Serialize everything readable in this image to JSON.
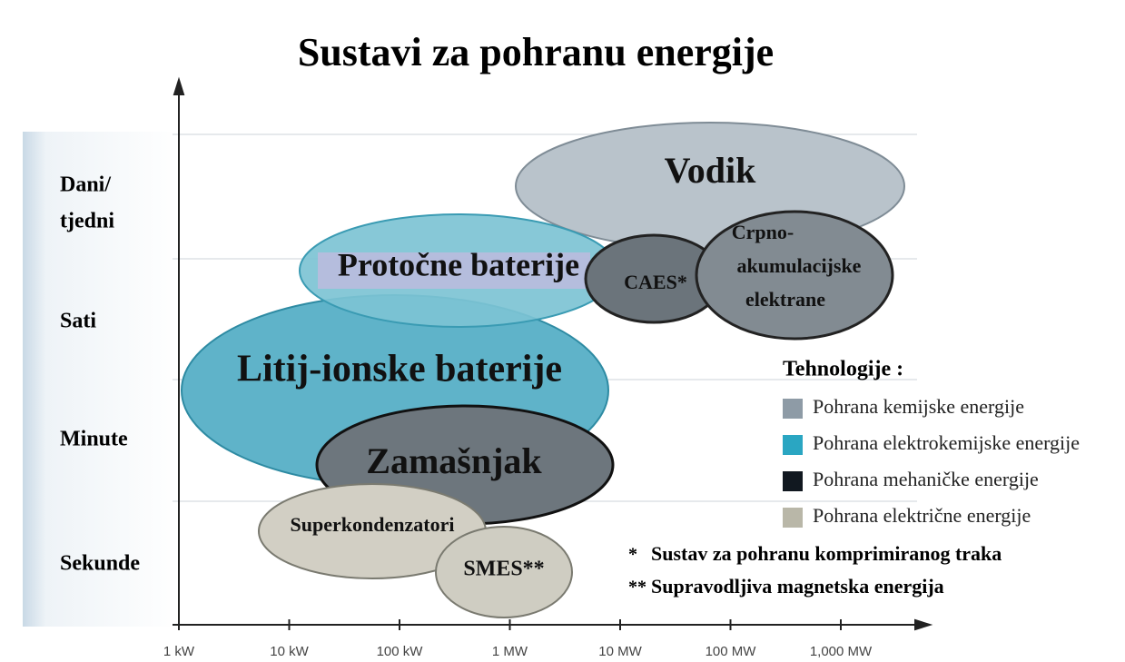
{
  "title": "Sustavi za pohranu energije",
  "y_axis": {
    "labels": [
      [
        "Dani/",
        "tjedni"
      ],
      [
        "Sati"
      ],
      [
        "Minute"
      ],
      [
        "Sekunde"
      ]
    ]
  },
  "x_axis": {
    "labels": [
      "1 kW",
      "10 kW",
      "100 kW",
      "1 MW",
      "10 MW",
      "100 MW",
      "1,000 MW"
    ]
  },
  "technologies": [
    {
      "lines": [
        "Vodik"
      ]
    },
    {
      "lines": [
        "Protočne baterije"
      ]
    },
    {
      "lines": [
        "CAES*"
      ]
    },
    {
      "lines": [
        "Crpno-",
        "akumulacijske",
        "elektrane"
      ]
    },
    {
      "lines": [
        "Litij-ionske baterije"
      ]
    },
    {
      "lines": [
        "Zamašnjak"
      ]
    },
    {
      "lines": [
        "Superkondenzatori"
      ]
    },
    {
      "lines": [
        "SMES**"
      ]
    }
  ],
  "legend": {
    "title": "Tehnologije :",
    "items": [
      {
        "label": "Pohrana kemijske energije",
        "color": "#8e9ba6"
      },
      {
        "label": "Pohrana elektrokemijske energije",
        "color": "#2aa6c2"
      },
      {
        "label": "Pohrana mehaničke energije",
        "color": "#111820"
      },
      {
        "label": "Pohrana električne energije",
        "color": "#b9b7a8"
      }
    ]
  },
  "notes": [
    {
      "marker": "*",
      "text": "Sustav za pohranu komprimiranog traka"
    },
    {
      "marker": "**",
      "text": "Supravodljiva magnetska energija"
    }
  ]
}
